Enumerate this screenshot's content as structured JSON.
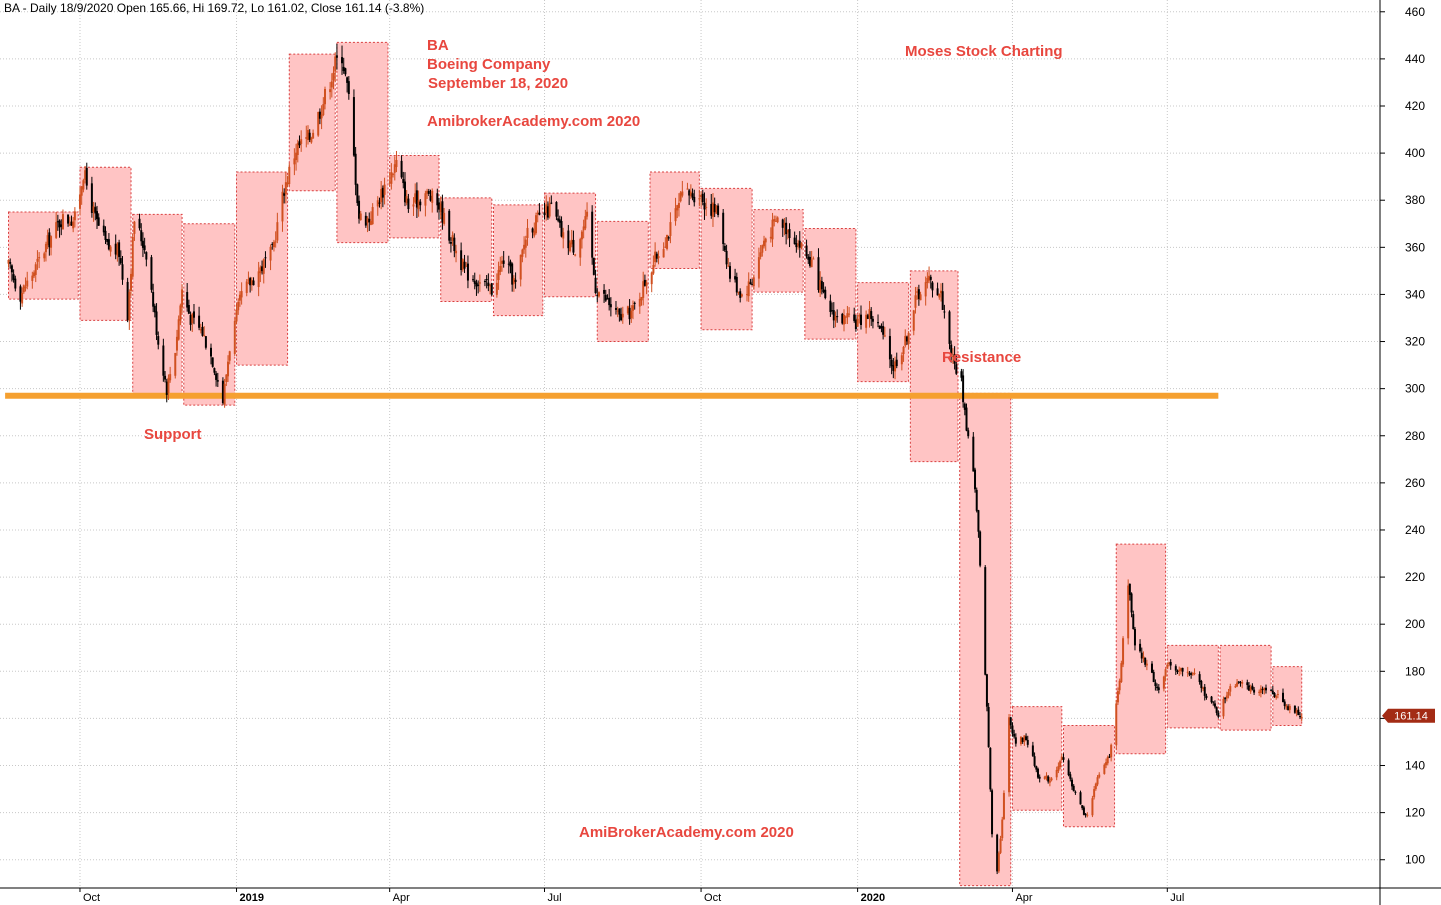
{
  "header": "BA - Daily 18/9/2020 Open 165.66, Hi 169.72, Lo 161.02, Close 161.14 (-3.8%)",
  "annotations": {
    "ticker": "BA",
    "company": "Boeing Company",
    "date": "September 18, 2020",
    "site_top": "AmibrokerAcademy.com  2020",
    "brand": "Moses Stock Charting",
    "resistance": "Resistance",
    "support": "Support",
    "site_bottom": "AmiBrokerAcademy.com  2020"
  },
  "colors": {
    "box_fill": "#ffc4c4",
    "box_border": "#d94040",
    "line_level": "#f5a030",
    "candle_up": "#d05020",
    "candle_down": "#000000",
    "last_price_tag": "#a32b14",
    "annotation": "#e8473f"
  },
  "chart_data": {
    "type": "candlestick",
    "y_axis": {
      "range": [
        88,
        465
      ],
      "ticks": [
        100,
        120,
        140,
        160,
        180,
        200,
        220,
        240,
        260,
        280,
        300,
        320,
        340,
        360,
        380,
        400,
        420,
        440,
        460
      ],
      "position": "right"
    },
    "x_axis": {
      "range": [
        "2018-08-15",
        "2020-11-03"
      ],
      "ticks": [
        {
          "date": "2018-10-01",
          "label": "Oct",
          "bold": false
        },
        {
          "date": "2019-01-01",
          "label": "2019",
          "bold": true
        },
        {
          "date": "2019-04-01",
          "label": "Apr",
          "bold": false
        },
        {
          "date": "2019-07-01",
          "label": "Jul",
          "bold": false
        },
        {
          "date": "2019-10-01",
          "label": "Oct",
          "bold": false
        },
        {
          "date": "2020-01-01",
          "label": "2020",
          "bold": true
        },
        {
          "date": "2020-04-01",
          "label": "Apr",
          "bold": false
        },
        {
          "date": "2020-07-01",
          "label": "Jul",
          "bold": false
        }
      ]
    },
    "grid": true,
    "last_price": 161.14,
    "horizontal_level": {
      "value": 297,
      "from": "2018-08-18",
      "to": "2020-07-31"
    },
    "monthly_boxes": [
      {
        "start": "2018-08-20",
        "end": "2018-09-30",
        "high": 375,
        "low": 338
      },
      {
        "start": "2018-10-01",
        "end": "2018-10-31",
        "high": 394,
        "low": 329
      },
      {
        "start": "2018-11-01",
        "end": "2018-11-30",
        "high": 374,
        "low": 297
      },
      {
        "start": "2018-12-01",
        "end": "2018-12-31",
        "high": 370,
        "low": 293
      },
      {
        "start": "2019-01-01",
        "end": "2019-01-31",
        "high": 392,
        "low": 310
      },
      {
        "start": "2019-02-01",
        "end": "2019-02-28",
        "high": 442,
        "low": 384
      },
      {
        "start": "2019-03-01",
        "end": "2019-03-31",
        "high": 447,
        "low": 362
      },
      {
        "start": "2019-04-01",
        "end": "2019-04-30",
        "high": 399,
        "low": 364
      },
      {
        "start": "2019-05-01",
        "end": "2019-05-31",
        "high": 381,
        "low": 337
      },
      {
        "start": "2019-06-01",
        "end": "2019-06-30",
        "high": 378,
        "low": 331
      },
      {
        "start": "2019-07-01",
        "end": "2019-07-31",
        "high": 383,
        "low": 339
      },
      {
        "start": "2019-08-01",
        "end": "2019-08-31",
        "high": 371,
        "low": 320
      },
      {
        "start": "2019-09-01",
        "end": "2019-09-30",
        "high": 392,
        "low": 351
      },
      {
        "start": "2019-10-01",
        "end": "2019-10-31",
        "high": 385,
        "low": 325
      },
      {
        "start": "2019-11-01",
        "end": "2019-11-30",
        "high": 376,
        "low": 341
      },
      {
        "start": "2019-12-01",
        "end": "2019-12-31",
        "high": 368,
        "low": 321
      },
      {
        "start": "2020-01-01",
        "end": "2020-01-31",
        "high": 345,
        "low": 303
      },
      {
        "start": "2020-02-01",
        "end": "2020-02-29",
        "high": 350,
        "low": 269
      },
      {
        "start": "2020-03-01",
        "end": "2020-03-31",
        "high": 298,
        "low": 89
      },
      {
        "start": "2020-04-01",
        "end": "2020-04-30",
        "high": 165,
        "low": 121
      },
      {
        "start": "2020-05-01",
        "end": "2020-05-31",
        "high": 157,
        "low": 114
      },
      {
        "start": "2020-06-01",
        "end": "2020-06-30",
        "high": 234,
        "low": 145
      },
      {
        "start": "2020-07-01",
        "end": "2020-07-31",
        "high": 191,
        "low": 156
      },
      {
        "start": "2020-08-01",
        "end": "2020-08-31",
        "high": 191,
        "low": 155
      },
      {
        "start": "2020-09-01",
        "end": "2020-09-18",
        "high": 182,
        "low": 157
      }
    ],
    "price_path": [
      [
        "2018-08-20",
        352
      ],
      [
        "2018-08-27",
        340
      ],
      [
        "2018-09-04",
        350
      ],
      [
        "2018-09-12",
        362
      ],
      [
        "2018-09-20",
        372
      ],
      [
        "2018-09-28",
        372
      ],
      [
        "2018-10-03",
        392
      ],
      [
        "2018-10-10",
        372
      ],
      [
        "2018-10-17",
        360
      ],
      [
        "2018-10-24",
        358
      ],
      [
        "2018-10-29",
        332
      ],
      [
        "2018-11-02",
        372
      ],
      [
        "2018-11-09",
        358
      ],
      [
        "2018-11-16",
        320
      ],
      [
        "2018-11-21",
        300
      ],
      [
        "2018-11-26",
        317
      ],
      [
        "2018-11-30",
        342
      ],
      [
        "2018-12-05",
        330
      ],
      [
        "2018-12-12",
        324
      ],
      [
        "2018-12-18",
        312
      ],
      [
        "2018-12-24",
        295
      ],
      [
        "2018-12-28",
        318
      ],
      [
        "2019-01-04",
        340
      ],
      [
        "2019-01-14",
        350
      ],
      [
        "2019-01-22",
        358
      ],
      [
        "2019-01-29",
        385
      ],
      [
        "2019-02-05",
        402
      ],
      [
        "2019-02-13",
        407
      ],
      [
        "2019-02-21",
        422
      ],
      [
        "2019-02-28",
        438
      ],
      [
        "2019-03-04",
        442
      ],
      [
        "2019-03-08",
        423
      ],
      [
        "2019-03-11",
        398
      ],
      [
        "2019-03-14",
        373
      ],
      [
        "2019-03-20",
        372
      ],
      [
        "2019-03-29",
        386
      ],
      [
        "2019-04-05",
        396
      ],
      [
        "2019-04-12",
        377
      ],
      [
        "2019-04-22",
        383
      ],
      [
        "2019-04-30",
        378
      ],
      [
        "2019-05-07",
        364
      ],
      [
        "2019-05-15",
        350
      ],
      [
        "2019-05-24",
        345
      ],
      [
        "2019-05-31",
        342
      ],
      [
        "2019-06-07",
        355
      ],
      [
        "2019-06-14",
        344
      ],
      [
        "2019-06-21",
        368
      ],
      [
        "2019-06-28",
        372
      ],
      [
        "2019-07-05",
        377
      ],
      [
        "2019-07-12",
        364
      ],
      [
        "2019-07-19",
        360
      ],
      [
        "2019-07-26",
        372
      ],
      [
        "2019-07-31",
        343
      ],
      [
        "2019-08-07",
        337
      ],
      [
        "2019-08-14",
        330
      ],
      [
        "2019-08-22",
        333
      ],
      [
        "2019-08-30",
        347
      ],
      [
        "2019-09-06",
        358
      ],
      [
        "2019-09-13",
        368
      ],
      [
        "2019-09-20",
        382
      ],
      [
        "2019-09-30",
        383
      ],
      [
        "2019-10-04",
        378
      ],
      [
        "2019-10-11",
        375
      ],
      [
        "2019-10-18",
        348
      ],
      [
        "2019-10-25",
        340
      ],
      [
        "2019-10-31",
        346
      ],
      [
        "2019-11-07",
        363
      ],
      [
        "2019-11-15",
        372
      ],
      [
        "2019-11-22",
        367
      ],
      [
        "2019-11-29",
        360
      ],
      [
        "2019-12-06",
        352
      ],
      [
        "2019-12-13",
        336
      ],
      [
        "2019-12-20",
        330
      ],
      [
        "2019-12-31",
        328
      ],
      [
        "2020-01-08",
        332
      ],
      [
        "2020-01-15",
        324
      ],
      [
        "2020-01-22",
        309
      ],
      [
        "2020-01-29",
        320
      ],
      [
        "2020-02-05",
        340
      ],
      [
        "2020-02-12",
        346
      ],
      [
        "2020-02-19",
        340
      ],
      [
        "2020-02-26",
        312
      ],
      [
        "2020-03-02",
        303
      ],
      [
        "2020-03-05",
        284
      ],
      [
        "2020-03-09",
        266
      ],
      [
        "2020-03-12",
        238
      ],
      [
        "2020-03-16",
        180
      ],
      [
        "2020-03-18",
        148
      ],
      [
        "2020-03-20",
        112
      ],
      [
        "2020-03-23",
        96
      ],
      [
        "2020-03-26",
        117
      ],
      [
        "2020-03-30",
        160
      ],
      [
        "2020-04-03",
        150
      ],
      [
        "2020-04-09",
        152
      ],
      [
        "2020-04-16",
        136
      ],
      [
        "2020-04-23",
        134
      ],
      [
        "2020-04-30",
        143
      ],
      [
        "2020-05-07",
        130
      ],
      [
        "2020-05-14",
        118
      ],
      [
        "2020-05-21",
        134
      ],
      [
        "2020-05-28",
        145
      ],
      [
        "2020-06-03",
        175
      ],
      [
        "2020-06-08",
        218
      ],
      [
        "2020-06-12",
        190
      ],
      [
        "2020-06-19",
        183
      ],
      [
        "2020-06-26",
        172
      ],
      [
        "2020-07-02",
        183
      ],
      [
        "2020-07-10",
        180
      ],
      [
        "2020-07-17",
        178
      ],
      [
        "2020-07-24",
        170
      ],
      [
        "2020-07-31",
        162
      ],
      [
        "2020-08-07",
        174
      ],
      [
        "2020-08-14",
        177
      ],
      [
        "2020-08-21",
        170
      ],
      [
        "2020-08-28",
        172
      ],
      [
        "2020-09-04",
        170
      ],
      [
        "2020-09-11",
        164
      ],
      [
        "2020-09-18",
        161
      ]
    ]
  }
}
